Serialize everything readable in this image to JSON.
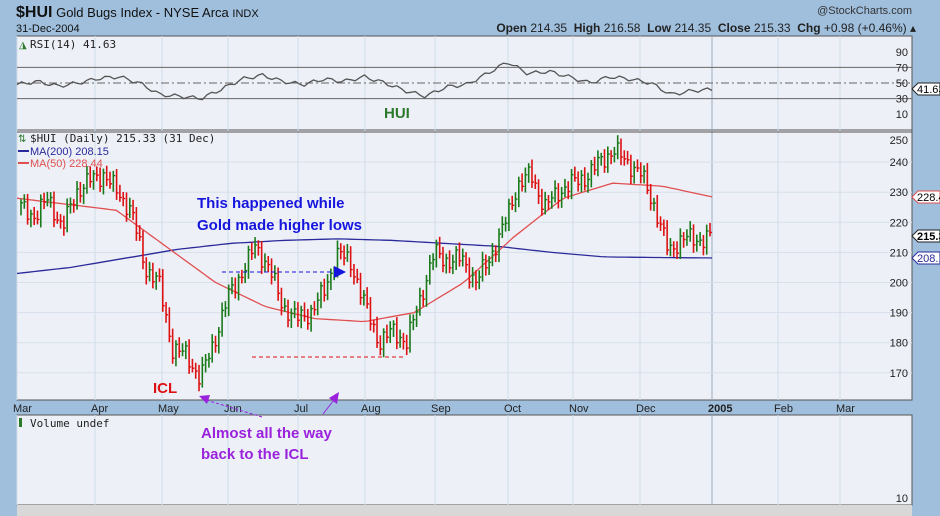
{
  "header": {
    "symbol": "$HUI",
    "name": "Gold Bugs Index - NYSE Arca",
    "exchange": "INDX",
    "date": "31-Dec-2004",
    "watermark": "@StockCharts.com",
    "open_label": "Open",
    "open": "214.35",
    "high_label": "High",
    "high": "216.58",
    "low_label": "Low",
    "low": "214.35",
    "close_label": "Close",
    "close": "215.33",
    "chg_label": "Chg",
    "chg": "+0.98 (+0.46%)"
  },
  "rsi": {
    "legend": "RSI(14) 41.63",
    "current_tag": "41.63",
    "ticks": [
      "90",
      "70",
      "50",
      "30",
      "10"
    ]
  },
  "price": {
    "legend": "$HUI (Daily) 215.33 (31 Dec)",
    "ma200_legend": "MA(200) 208.15",
    "ma50_legend": "MA(50) 228.44",
    "close_tag": "215.33",
    "ma50_tag": "228.44",
    "ma200_tag": "208.15",
    "ticks": [
      "250",
      "240",
      "230",
      "220",
      "210",
      "200",
      "190",
      "180",
      "170"
    ]
  },
  "volume": {
    "legend": "Volume undef",
    "tick": "10"
  },
  "xaxis": {
    "labels": [
      "Mar",
      "Apr",
      "May",
      "Jun",
      "Jul",
      "Aug",
      "Sep",
      "Oct",
      "Nov",
      "Dec",
      "2005",
      "Feb",
      "Mar"
    ]
  },
  "annotations": {
    "hui": "HUI",
    "note1_line1": "This happened while",
    "note1_line2": "Gold made higher lows",
    "icl": "ICL",
    "note2_line1": "Almost all the way",
    "note2_line2": "back to the ICL"
  },
  "colors": {
    "up": "#1a7a1a",
    "down": "#dd1111",
    "ma200": "#2a2a9a",
    "ma50": "#e05050",
    "annotation_blue": "#1515dd",
    "annotation_purple": "#9a22dd",
    "annotation_green": "#2a7a2a"
  },
  "chart_data": {
    "type": "ohlc",
    "title": "$HUI Gold Bugs Index (Daily)",
    "period": "Mar 2004 - Dec 2004",
    "ylim": [
      165,
      252
    ],
    "weekly_close": [
      225,
      222,
      228,
      218,
      230,
      234,
      236,
      230,
      224,
      205,
      200,
      178,
      176,
      168,
      180,
      195,
      203,
      212,
      205,
      192,
      188,
      190,
      197,
      210,
      206,
      192,
      180,
      184,
      180,
      195,
      210,
      207,
      208,
      200,
      208,
      218,
      232,
      236,
      225,
      230,
      233,
      235,
      240,
      244,
      240,
      236,
      225,
      210,
      215,
      214,
      215.33
    ],
    "ma200": [
      203,
      205,
      208,
      211,
      213,
      214,
      214.5,
      214,
      213,
      212,
      210,
      208.5,
      208.3,
      208.15
    ],
    "ma50": [
      228,
      226,
      224,
      212,
      200,
      192,
      188,
      187,
      190,
      200,
      215,
      228,
      233,
      232,
      228.44
    ],
    "rsi": [
      48,
      52,
      46,
      50,
      56,
      58,
      50,
      35,
      33,
      30,
      42,
      55,
      60,
      52,
      48,
      55,
      52,
      58,
      50,
      40,
      33,
      45,
      48,
      62,
      77,
      62,
      65,
      58,
      50,
      58,
      55,
      50,
      35,
      40,
      41.63
    ]
  }
}
